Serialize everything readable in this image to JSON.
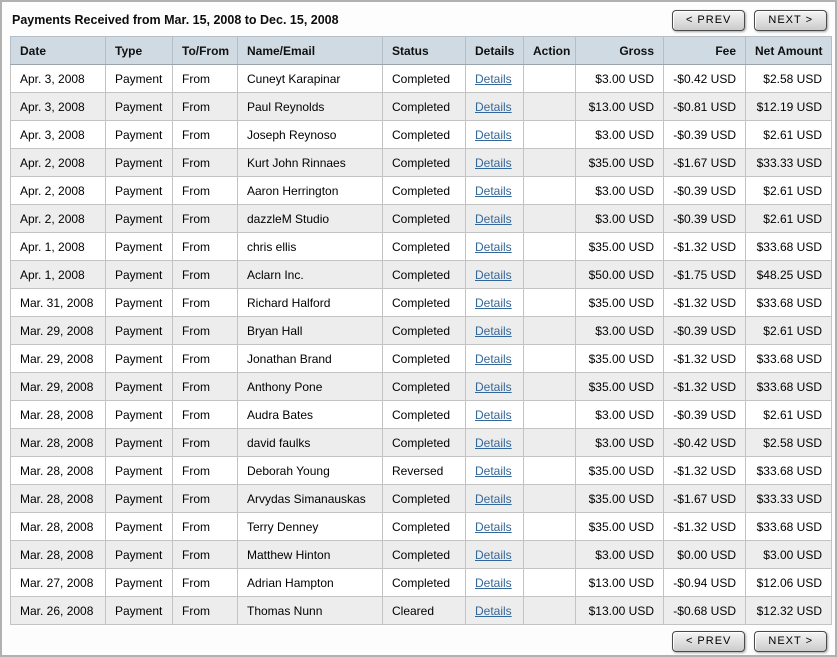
{
  "header": {
    "title": "Payments Received from Mar. 15, 2008 to Dec. 15, 2008",
    "prev_label": "< PREV",
    "next_label": "NEXT >"
  },
  "footer": {
    "prev_label": "< PREV",
    "next_label": "NEXT >"
  },
  "colors": {
    "header_row_bg": "#cfdae2",
    "alt_row_bg": "#ededed",
    "link": "#336699",
    "cell_border": "#c3c3c3",
    "frame_border": "#b1b1b1"
  },
  "table": {
    "columns": [
      "Date",
      "Type",
      "To/From",
      "Name/Email",
      "Status",
      "Details",
      "Action",
      "Gross",
      "Fee",
      "Net Amount"
    ],
    "details_label": "Details",
    "rows": [
      {
        "date": "Apr. 3, 2008",
        "type": "Payment",
        "to_from": "From",
        "name": "Cuneyt Karapinar",
        "status": "Completed",
        "action": "",
        "gross": "$3.00 USD",
        "fee": "-$0.42 USD",
        "net": "$2.58 USD"
      },
      {
        "date": "Apr. 3, 2008",
        "type": "Payment",
        "to_from": "From",
        "name": "Paul Reynolds",
        "status": "Completed",
        "action": "",
        "gross": "$13.00 USD",
        "fee": "-$0.81 USD",
        "net": "$12.19 USD"
      },
      {
        "date": "Apr. 3, 2008",
        "type": "Payment",
        "to_from": "From",
        "name": "Joseph Reynoso",
        "status": "Completed",
        "action": "",
        "gross": "$3.00 USD",
        "fee": "-$0.39 USD",
        "net": "$2.61 USD"
      },
      {
        "date": "Apr. 2, 2008",
        "type": "Payment",
        "to_from": "From",
        "name": "Kurt John Rinnaes",
        "status": "Completed",
        "action": "",
        "gross": "$35.00 USD",
        "fee": "-$1.67 USD",
        "net": "$33.33 USD"
      },
      {
        "date": "Apr. 2, 2008",
        "type": "Payment",
        "to_from": "From",
        "name": "Aaron Herrington",
        "status": "Completed",
        "action": "",
        "gross": "$3.00 USD",
        "fee": "-$0.39 USD",
        "net": "$2.61 USD"
      },
      {
        "date": "Apr. 2, 2008",
        "type": "Payment",
        "to_from": "From",
        "name": "dazzleM Studio",
        "status": "Completed",
        "action": "",
        "gross": "$3.00 USD",
        "fee": "-$0.39 USD",
        "net": "$2.61 USD"
      },
      {
        "date": "Apr. 1, 2008",
        "type": "Payment",
        "to_from": "From",
        "name": "chris ellis",
        "status": "Completed",
        "action": "",
        "gross": "$35.00 USD",
        "fee": "-$1.32 USD",
        "net": "$33.68 USD"
      },
      {
        "date": "Apr. 1, 2008",
        "type": "Payment",
        "to_from": "From",
        "name": "Aclarn Inc.",
        "status": "Completed",
        "action": "",
        "gross": "$50.00 USD",
        "fee": "-$1.75 USD",
        "net": "$48.25 USD"
      },
      {
        "date": "Mar. 31, 2008",
        "type": "Payment",
        "to_from": "From",
        "name": "Richard Halford",
        "status": "Completed",
        "action": "",
        "gross": "$35.00 USD",
        "fee": "-$1.32 USD",
        "net": "$33.68 USD"
      },
      {
        "date": "Mar. 29, 2008",
        "type": "Payment",
        "to_from": "From",
        "name": "Bryan Hall",
        "status": "Completed",
        "action": "",
        "gross": "$3.00 USD",
        "fee": "-$0.39 USD",
        "net": "$2.61 USD"
      },
      {
        "date": "Mar. 29, 2008",
        "type": "Payment",
        "to_from": "From",
        "name": "Jonathan Brand",
        "status": "Completed",
        "action": "",
        "gross": "$35.00 USD",
        "fee": "-$1.32 USD",
        "net": "$33.68 USD"
      },
      {
        "date": "Mar. 29, 2008",
        "type": "Payment",
        "to_from": "From",
        "name": "Anthony Pone",
        "status": "Completed",
        "action": "",
        "gross": "$35.00 USD",
        "fee": "-$1.32 USD",
        "net": "$33.68 USD"
      },
      {
        "date": "Mar. 28, 2008",
        "type": "Payment",
        "to_from": "From",
        "name": "Audra Bates",
        "status": "Completed",
        "action": "",
        "gross": "$3.00 USD",
        "fee": "-$0.39 USD",
        "net": "$2.61 USD"
      },
      {
        "date": "Mar. 28, 2008",
        "type": "Payment",
        "to_from": "From",
        "name": "david faulks",
        "status": "Completed",
        "action": "",
        "gross": "$3.00 USD",
        "fee": "-$0.42 USD",
        "net": "$2.58 USD"
      },
      {
        "date": "Mar. 28, 2008",
        "type": "Payment",
        "to_from": "From",
        "name": "Deborah Young",
        "status": "Reversed",
        "action": "",
        "gross": "$35.00 USD",
        "fee": "-$1.32 USD",
        "net": "$33.68 USD"
      },
      {
        "date": "Mar. 28, 2008",
        "type": "Payment",
        "to_from": "From",
        "name": "Arvydas Simanauskas",
        "status": "Completed",
        "action": "",
        "gross": "$35.00 USD",
        "fee": "-$1.67 USD",
        "net": "$33.33 USD"
      },
      {
        "date": "Mar. 28, 2008",
        "type": "Payment",
        "to_from": "From",
        "name": "Terry Denney",
        "status": "Completed",
        "action": "",
        "gross": "$35.00 USD",
        "fee": "-$1.32 USD",
        "net": "$33.68 USD"
      },
      {
        "date": "Mar. 28, 2008",
        "type": "Payment",
        "to_from": "From",
        "name": "Matthew Hinton",
        "status": "Completed",
        "action": "",
        "gross": "$3.00 USD",
        "fee": "$0.00 USD",
        "net": "$3.00 USD"
      },
      {
        "date": "Mar. 27, 2008",
        "type": "Payment",
        "to_from": "From",
        "name": "Adrian Hampton",
        "status": "Completed",
        "action": "",
        "gross": "$13.00 USD",
        "fee": "-$0.94 USD",
        "net": "$12.06 USD"
      },
      {
        "date": "Mar. 26, 2008",
        "type": "Payment",
        "to_from": "From",
        "name": "Thomas Nunn",
        "status": "Cleared",
        "action": "",
        "gross": "$13.00 USD",
        "fee": "-$0.68 USD",
        "net": "$12.32 USD"
      }
    ]
  }
}
